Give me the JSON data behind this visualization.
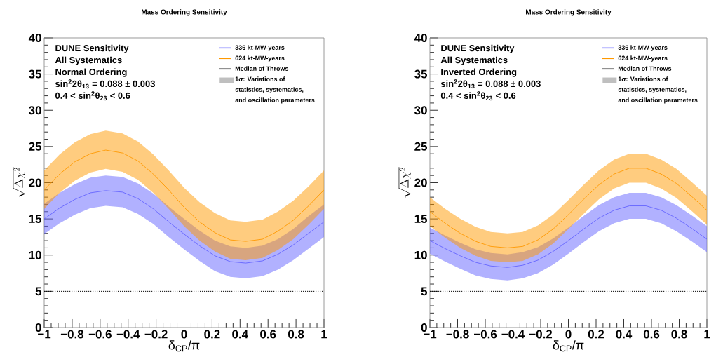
{
  "chart_data": [
    {
      "type": "line",
      "title": "Mass Ordering Sensitivity",
      "xlabel": "δ$_{CP}$/π",
      "ylabel": "\\sqrt{\\Delta\\chi^{2}}",
      "x": [
        -1,
        -0.89,
        -0.78,
        -0.67,
        -0.56,
        -0.44,
        -0.33,
        -0.22,
        -0.11,
        0,
        0.11,
        0.22,
        0.33,
        0.44,
        0.56,
        0.67,
        0.78,
        0.89,
        1
      ],
      "series": [
        {
          "name": "336 kt-MW-years",
          "color": "#6464ff",
          "values": [
            15.0,
            16.5,
            17.7,
            18.6,
            18.9,
            18.7,
            17.8,
            16.4,
            14.6,
            12.9,
            11.3,
            9.9,
            9.1,
            8.9,
            9.2,
            10.1,
            11.4,
            13.0,
            14.6
          ],
          "lower": [
            12.9,
            14.4,
            15.6,
            16.5,
            16.8,
            16.6,
            15.7,
            14.3,
            12.5,
            10.8,
            9.2,
            7.8,
            7.0,
            6.8,
            7.1,
            8.0,
            9.3,
            10.9,
            12.5
          ],
          "upper": [
            17.1,
            18.6,
            19.8,
            20.7,
            21.0,
            20.8,
            19.9,
            18.5,
            16.7,
            15.0,
            13.4,
            12.0,
            11.2,
            11.0,
            11.3,
            12.2,
            13.6,
            15.4,
            17.0
          ]
        },
        {
          "name": "624 kt-MW-years",
          "color": "#ff9900",
          "values": [
            19.0,
            21.2,
            22.9,
            24.0,
            24.5,
            24.1,
            23.0,
            21.2,
            19.0,
            16.6,
            14.6,
            13.1,
            12.1,
            11.9,
            12.2,
            13.3,
            14.8,
            16.8,
            19.0
          ],
          "lower": [
            16.4,
            18.6,
            20.3,
            21.4,
            21.9,
            21.5,
            20.4,
            18.6,
            16.4,
            14.0,
            12.0,
            10.5,
            9.5,
            9.3,
            9.6,
            10.7,
            12.2,
            14.2,
            16.4
          ],
          "upper": [
            21.7,
            23.9,
            25.6,
            26.7,
            27.2,
            26.8,
            25.7,
            23.9,
            21.7,
            19.3,
            17.3,
            15.8,
            14.8,
            14.6,
            14.9,
            16.0,
            17.5,
            19.5,
            21.7
          ]
        }
      ],
      "xlim": [
        -1,
        1
      ],
      "ylim": [
        0,
        40
      ],
      "xticks": [
        {
          "value": -1,
          "label": "−1"
        },
        {
          "value": -0.8,
          "label": "−0.8"
        },
        {
          "value": -0.6,
          "label": "−0.6"
        },
        {
          "value": -0.4,
          "label": "−0.4"
        },
        {
          "value": -0.2,
          "label": "−0.2"
        },
        0,
        0.2,
        0.4,
        0.6,
        0.8,
        1
      ],
      "yticks": [
        0,
        5,
        10,
        15,
        20,
        25,
        30,
        35,
        40
      ],
      "ref_lines": [
        {
          "axis": "y",
          "value": 5,
          "color": "#000000",
          "line_style": "dotted"
        }
      ],
      "legend": "top right",
      "annotations": [
        "DUNE Sensitivity",
        "All Systematics",
        "Normal Ordering",
        "sin$^{2}$2θ$_{13}$ = 0.088 ± 0.003",
        "0.4 < sin$^{2}$θ$_{23}$ < 0.6",
        "Median of Throws",
        "1σ: Variations of",
        "statistics, systematics,",
        "and oscillation parameters"
      ]
    },
    {
      "type": "line",
      "title": "Mass Ordering Sensitivity",
      "xlabel": "δ$_{CP}$/π",
      "ylabel": "\\sqrt{\\Delta\\chi^{2}}",
      "x": [
        -1,
        -0.89,
        -0.78,
        -0.67,
        -0.56,
        -0.44,
        -0.33,
        -0.22,
        -0.11,
        0,
        0.11,
        0.22,
        0.33,
        0.44,
        0.56,
        0.67,
        0.78,
        0.89,
        1
      ],
      "series": [
        {
          "name": "336 kt-MW-years",
          "color": "#6464ff",
          "values": [
            12.0,
            10.9,
            9.9,
            9.0,
            8.5,
            8.3,
            8.6,
            9.3,
            10.5,
            12.0,
            13.6,
            15.1,
            16.2,
            16.8,
            16.8,
            16.2,
            15.1,
            13.7,
            12.2
          ],
          "lower": [
            10.2,
            9.1,
            8.1,
            7.2,
            6.7,
            6.5,
            6.8,
            7.5,
            8.7,
            10.2,
            11.8,
            13.3,
            14.4,
            15.0,
            15.0,
            14.4,
            13.3,
            11.9,
            10.4
          ],
          "upper": [
            13.8,
            12.7,
            11.7,
            10.8,
            10.3,
            10.1,
            10.4,
            11.1,
            12.3,
            13.8,
            15.4,
            16.9,
            18.0,
            18.6,
            18.6,
            18.0,
            16.9,
            15.5,
            14.0
          ]
        },
        {
          "name": "624 kt-MW-years",
          "color": "#ff9900",
          "values": [
            16.0,
            14.4,
            13.0,
            11.9,
            11.2,
            11.0,
            11.2,
            12.1,
            13.6,
            15.6,
            17.7,
            19.7,
            21.2,
            22.0,
            22.0,
            21.2,
            19.9,
            18.1,
            16.2
          ],
          "lower": [
            14.0,
            12.4,
            11.0,
            9.9,
            9.2,
            9.0,
            9.2,
            10.1,
            11.6,
            13.6,
            15.7,
            17.7,
            19.2,
            20.0,
            20.0,
            19.2,
            17.9,
            16.1,
            14.2
          ],
          "upper": [
            18.0,
            16.4,
            15.0,
            13.9,
            13.2,
            13.0,
            13.2,
            14.1,
            15.6,
            17.6,
            19.7,
            21.7,
            23.2,
            24.0,
            24.0,
            23.2,
            21.9,
            20.1,
            18.2
          ]
        }
      ],
      "xlim": [
        -1,
        1
      ],
      "ylim": [
        0,
        40
      ],
      "xticks": [
        {
          "value": -1,
          "label": "−1"
        },
        {
          "value": -0.8,
          "label": "−0.8"
        },
        {
          "value": -0.6,
          "label": "−0.6"
        },
        {
          "value": -0.4,
          "label": "−0.4"
        },
        {
          "value": -0.2,
          "label": "−0.2"
        },
        0,
        0.2,
        0.4,
        0.6,
        0.8,
        1
      ],
      "yticks": [
        0,
        5,
        10,
        15,
        20,
        25,
        30,
        35,
        40
      ],
      "ref_lines": [
        {
          "axis": "y",
          "value": 5,
          "color": "#000000",
          "line_style": "dotted"
        }
      ],
      "legend": "top right",
      "annotations": [
        "DUNE Sensitivity",
        "All Systematics",
        "Inverted Ordering",
        "sin$^{2}$2θ$_{13}$ = 0.088 ± 0.003",
        "0.4 < sin$^{2}$θ$_{23}$ < 0.6",
        "Median of Throws",
        "1σ: Variations of",
        "statistics, systematics,",
        "and oscillation parameters"
      ]
    }
  ]
}
